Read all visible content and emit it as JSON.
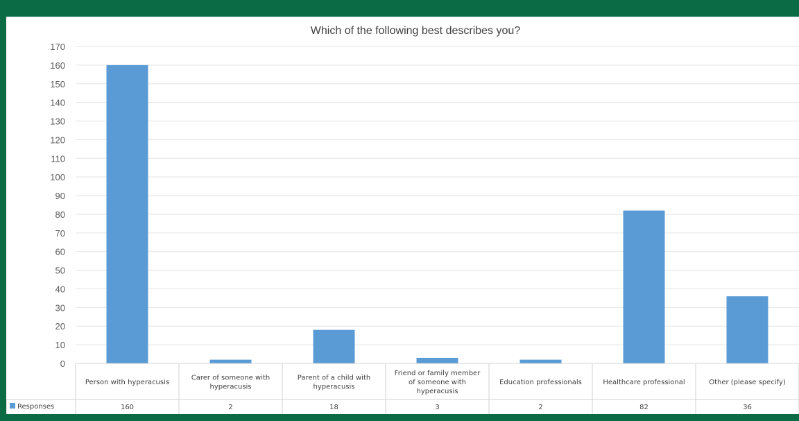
{
  "chart_data": {
    "type": "bar",
    "title": "Which of the following best describes you?",
    "categories": [
      "Person with hyperacusis",
      "Carer of someone with hyperacusis",
      "Parent of a child with hyperacusis",
      "Friend or family member of someone with hyperacusis",
      "Education professionals",
      "Healthcare professional",
      "Other (please specify)"
    ],
    "series": [
      {
        "name": "Responses",
        "values": [
          160,
          2,
          18,
          3,
          2,
          82,
          36
        ],
        "color": "#5b9bd5"
      }
    ],
    "ylim": [
      0,
      170
    ],
    "ytick_step": 10,
    "grid": true,
    "data_table": true,
    "legend": "data-table"
  },
  "colors": {
    "frame": "#0a6b45",
    "bar": "#5b9bd5",
    "grid": "#e3e3e3",
    "axis_text": "#595959"
  }
}
